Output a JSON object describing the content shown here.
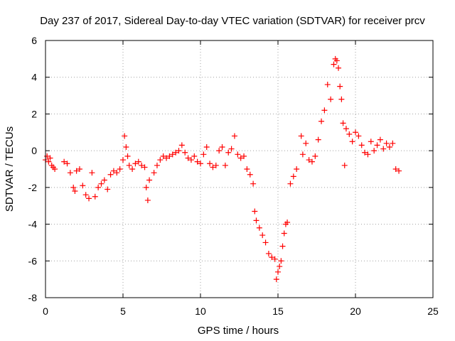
{
  "chart_data": {
    "type": "scatter",
    "title": "Day 237 of 2017, Sidereal Day-to-day VTEC variation (SDTVAR) for receiver prcv",
    "xlabel": "GPS time / hours",
    "ylabel": "SDTVAR / TECUs",
    "xlim": [
      0,
      25
    ],
    "ylim": [
      -8,
      6
    ],
    "xticks": [
      0,
      5,
      10,
      15,
      20,
      25
    ],
    "yticks": [
      -8,
      -6,
      -4,
      -2,
      0,
      2,
      4,
      6
    ],
    "xtick_labels": [
      "0",
      "5",
      "10",
      "15",
      "20",
      "25"
    ],
    "ytick_labels": [
      "-8",
      "-6",
      "-4",
      "-2",
      "0",
      "2",
      "4",
      "6"
    ],
    "grid": true,
    "marker": "+",
    "series": [
      {
        "name": "SDTVAR",
        "color": "#ff0000",
        "x": [
          0.0,
          0.1,
          0.2,
          0.3,
          0.4,
          0.5,
          0.6,
          1.2,
          1.4,
          1.6,
          1.8,
          1.9,
          2.0,
          2.2,
          2.4,
          2.6,
          2.8,
          3.0,
          3.2,
          3.4,
          3.6,
          3.8,
          4.0,
          4.2,
          4.4,
          4.6,
          4.8,
          5.0,
          5.1,
          5.2,
          5.3,
          5.4,
          5.6,
          5.8,
          6.0,
          6.2,
          6.4,
          6.5,
          6.6,
          6.7,
          7.0,
          7.2,
          7.4,
          7.6,
          7.8,
          8.0,
          8.2,
          8.4,
          8.6,
          8.8,
          9.0,
          9.2,
          9.4,
          9.6,
          9.8,
          10.0,
          10.2,
          10.4,
          10.6,
          10.8,
          11.0,
          11.2,
          11.4,
          11.6,
          11.8,
          12.0,
          12.2,
          12.4,
          12.6,
          12.8,
          13.0,
          13.2,
          13.4,
          13.5,
          13.6,
          13.8,
          14.0,
          14.2,
          14.4,
          14.6,
          14.8,
          14.9,
          15.0,
          15.1,
          15.2,
          15.3,
          15.4,
          15.5,
          15.6,
          15.8,
          16.0,
          16.2,
          16.5,
          16.6,
          16.8,
          17.0,
          17.2,
          17.4,
          17.6,
          17.8,
          18.0,
          18.2,
          18.4,
          18.6,
          18.7,
          18.8,
          18.9,
          19.0,
          19.1,
          19.2,
          19.3,
          19.4,
          19.6,
          19.8,
          20.0,
          20.2,
          20.4,
          20.6,
          20.8,
          21.0,
          21.2,
          21.4,
          21.6,
          21.8,
          22.0,
          22.2,
          22.4,
          22.6,
          22.8
        ],
        "y": [
          -0.5,
          -0.3,
          -0.6,
          -0.4,
          -0.8,
          -0.9,
          -1.0,
          -0.6,
          -0.7,
          -1.2,
          -2.0,
          -2.2,
          -1.1,
          -1.0,
          -1.9,
          -2.4,
          -2.6,
          -1.2,
          -2.5,
          -2.0,
          -1.8,
          -1.6,
          -2.1,
          -1.3,
          -1.1,
          -1.2,
          -1.0,
          -0.5,
          0.8,
          0.2,
          -0.3,
          -0.8,
          -1.0,
          -0.7,
          -0.6,
          -0.8,
          -0.9,
          -2.0,
          -2.7,
          -1.6,
          -1.2,
          -0.8,
          -0.5,
          -0.3,
          -0.4,
          -0.3,
          -0.2,
          -0.1,
          0.0,
          0.3,
          -0.1,
          -0.4,
          -0.5,
          -0.3,
          -0.6,
          -0.7,
          -0.2,
          0.2,
          -0.7,
          -0.9,
          -0.8,
          0.0,
          0.2,
          -0.8,
          -0.1,
          0.1,
          0.8,
          -0.2,
          -0.4,
          -0.3,
          -1.0,
          -1.3,
          -1.8,
          -3.3,
          -3.8,
          -4.2,
          -4.6,
          -5.0,
          -5.6,
          -5.8,
          -5.9,
          -7.0,
          -6.6,
          -6.3,
          -6.0,
          -5.2,
          -4.5,
          -4.0,
          -3.9,
          -1.8,
          -1.4,
          -1.0,
          0.8,
          -0.2,
          0.4,
          -0.5,
          -0.6,
          -0.3,
          0.6,
          1.6,
          2.2,
          3.6,
          2.8,
          4.7,
          5.0,
          4.9,
          4.5,
          3.5,
          2.8,
          1.5,
          -0.8,
          1.2,
          0.9,
          0.5,
          1.0,
          0.8,
          0.3,
          -0.1,
          -0.2,
          0.5,
          0.0,
          0.3,
          0.6,
          0.1,
          0.4,
          0.2,
          0.4,
          -1.0,
          -1.1
        ]
      }
    ]
  }
}
